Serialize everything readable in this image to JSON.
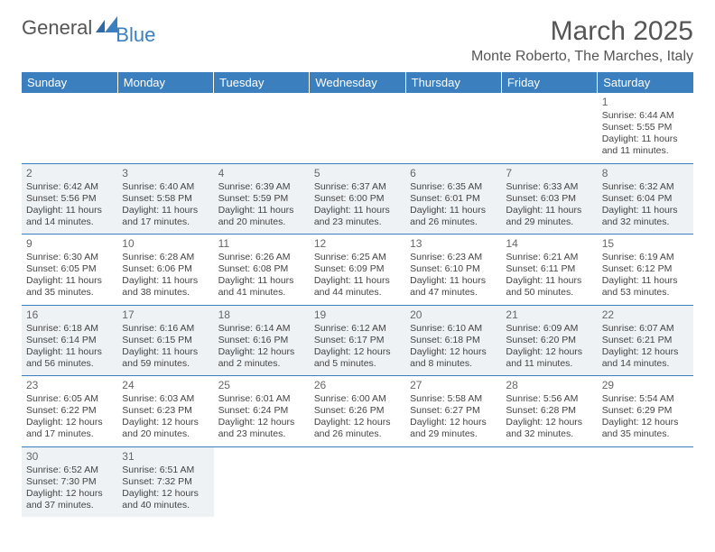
{
  "logo": {
    "general": "General",
    "blue": "Blue"
  },
  "title": "March 2025",
  "location": "Monte Roberto, The Marches, Italy",
  "colors": {
    "header_bg": "#3b7fbf",
    "header_fg": "#ffffff",
    "shaded_bg": "#eef2f5",
    "border": "#3b7fbf",
    "text": "#444444"
  },
  "weekdays": [
    "Sunday",
    "Monday",
    "Tuesday",
    "Wednesday",
    "Thursday",
    "Friday",
    "Saturday"
  ],
  "weeks": [
    [
      null,
      null,
      null,
      null,
      null,
      null,
      {
        "n": "1",
        "sr": "Sunrise: 6:44 AM",
        "ss": "Sunset: 5:55 PM",
        "dl1": "Daylight: 11 hours",
        "dl2": "and 11 minutes.",
        "sh": false
      }
    ],
    [
      {
        "n": "2",
        "sr": "Sunrise: 6:42 AM",
        "ss": "Sunset: 5:56 PM",
        "dl1": "Daylight: 11 hours",
        "dl2": "and 14 minutes.",
        "sh": true
      },
      {
        "n": "3",
        "sr": "Sunrise: 6:40 AM",
        "ss": "Sunset: 5:58 PM",
        "dl1": "Daylight: 11 hours",
        "dl2": "and 17 minutes.",
        "sh": true
      },
      {
        "n": "4",
        "sr": "Sunrise: 6:39 AM",
        "ss": "Sunset: 5:59 PM",
        "dl1": "Daylight: 11 hours",
        "dl2": "and 20 minutes.",
        "sh": true
      },
      {
        "n": "5",
        "sr": "Sunrise: 6:37 AM",
        "ss": "Sunset: 6:00 PM",
        "dl1": "Daylight: 11 hours",
        "dl2": "and 23 minutes.",
        "sh": true
      },
      {
        "n": "6",
        "sr": "Sunrise: 6:35 AM",
        "ss": "Sunset: 6:01 PM",
        "dl1": "Daylight: 11 hours",
        "dl2": "and 26 minutes.",
        "sh": true
      },
      {
        "n": "7",
        "sr": "Sunrise: 6:33 AM",
        "ss": "Sunset: 6:03 PM",
        "dl1": "Daylight: 11 hours",
        "dl2": "and 29 minutes.",
        "sh": true
      },
      {
        "n": "8",
        "sr": "Sunrise: 6:32 AM",
        "ss": "Sunset: 6:04 PM",
        "dl1": "Daylight: 11 hours",
        "dl2": "and 32 minutes.",
        "sh": true
      }
    ],
    [
      {
        "n": "9",
        "sr": "Sunrise: 6:30 AM",
        "ss": "Sunset: 6:05 PM",
        "dl1": "Daylight: 11 hours",
        "dl2": "and 35 minutes.",
        "sh": false
      },
      {
        "n": "10",
        "sr": "Sunrise: 6:28 AM",
        "ss": "Sunset: 6:06 PM",
        "dl1": "Daylight: 11 hours",
        "dl2": "and 38 minutes.",
        "sh": false
      },
      {
        "n": "11",
        "sr": "Sunrise: 6:26 AM",
        "ss": "Sunset: 6:08 PM",
        "dl1": "Daylight: 11 hours",
        "dl2": "and 41 minutes.",
        "sh": false
      },
      {
        "n": "12",
        "sr": "Sunrise: 6:25 AM",
        "ss": "Sunset: 6:09 PM",
        "dl1": "Daylight: 11 hours",
        "dl2": "and 44 minutes.",
        "sh": false
      },
      {
        "n": "13",
        "sr": "Sunrise: 6:23 AM",
        "ss": "Sunset: 6:10 PM",
        "dl1": "Daylight: 11 hours",
        "dl2": "and 47 minutes.",
        "sh": false
      },
      {
        "n": "14",
        "sr": "Sunrise: 6:21 AM",
        "ss": "Sunset: 6:11 PM",
        "dl1": "Daylight: 11 hours",
        "dl2": "and 50 minutes.",
        "sh": false
      },
      {
        "n": "15",
        "sr": "Sunrise: 6:19 AM",
        "ss": "Sunset: 6:12 PM",
        "dl1": "Daylight: 11 hours",
        "dl2": "and 53 minutes.",
        "sh": false
      }
    ],
    [
      {
        "n": "16",
        "sr": "Sunrise: 6:18 AM",
        "ss": "Sunset: 6:14 PM",
        "dl1": "Daylight: 11 hours",
        "dl2": "and 56 minutes.",
        "sh": true
      },
      {
        "n": "17",
        "sr": "Sunrise: 6:16 AM",
        "ss": "Sunset: 6:15 PM",
        "dl1": "Daylight: 11 hours",
        "dl2": "and 59 minutes.",
        "sh": true
      },
      {
        "n": "18",
        "sr": "Sunrise: 6:14 AM",
        "ss": "Sunset: 6:16 PM",
        "dl1": "Daylight: 12 hours",
        "dl2": "and 2 minutes.",
        "sh": true
      },
      {
        "n": "19",
        "sr": "Sunrise: 6:12 AM",
        "ss": "Sunset: 6:17 PM",
        "dl1": "Daylight: 12 hours",
        "dl2": "and 5 minutes.",
        "sh": true
      },
      {
        "n": "20",
        "sr": "Sunrise: 6:10 AM",
        "ss": "Sunset: 6:18 PM",
        "dl1": "Daylight: 12 hours",
        "dl2": "and 8 minutes.",
        "sh": true
      },
      {
        "n": "21",
        "sr": "Sunrise: 6:09 AM",
        "ss": "Sunset: 6:20 PM",
        "dl1": "Daylight: 12 hours",
        "dl2": "and 11 minutes.",
        "sh": true
      },
      {
        "n": "22",
        "sr": "Sunrise: 6:07 AM",
        "ss": "Sunset: 6:21 PM",
        "dl1": "Daylight: 12 hours",
        "dl2": "and 14 minutes.",
        "sh": true
      }
    ],
    [
      {
        "n": "23",
        "sr": "Sunrise: 6:05 AM",
        "ss": "Sunset: 6:22 PM",
        "dl1": "Daylight: 12 hours",
        "dl2": "and 17 minutes.",
        "sh": false
      },
      {
        "n": "24",
        "sr": "Sunrise: 6:03 AM",
        "ss": "Sunset: 6:23 PM",
        "dl1": "Daylight: 12 hours",
        "dl2": "and 20 minutes.",
        "sh": false
      },
      {
        "n": "25",
        "sr": "Sunrise: 6:01 AM",
        "ss": "Sunset: 6:24 PM",
        "dl1": "Daylight: 12 hours",
        "dl2": "and 23 minutes.",
        "sh": false
      },
      {
        "n": "26",
        "sr": "Sunrise: 6:00 AM",
        "ss": "Sunset: 6:26 PM",
        "dl1": "Daylight: 12 hours",
        "dl2": "and 26 minutes.",
        "sh": false
      },
      {
        "n": "27",
        "sr": "Sunrise: 5:58 AM",
        "ss": "Sunset: 6:27 PM",
        "dl1": "Daylight: 12 hours",
        "dl2": "and 29 minutes.",
        "sh": false
      },
      {
        "n": "28",
        "sr": "Sunrise: 5:56 AM",
        "ss": "Sunset: 6:28 PM",
        "dl1": "Daylight: 12 hours",
        "dl2": "and 32 minutes.",
        "sh": false
      },
      {
        "n": "29",
        "sr": "Sunrise: 5:54 AM",
        "ss": "Sunset: 6:29 PM",
        "dl1": "Daylight: 12 hours",
        "dl2": "and 35 minutes.",
        "sh": false
      }
    ],
    [
      {
        "n": "30",
        "sr": "Sunrise: 6:52 AM",
        "ss": "Sunset: 7:30 PM",
        "dl1": "Daylight: 12 hours",
        "dl2": "and 37 minutes.",
        "sh": true
      },
      {
        "n": "31",
        "sr": "Sunrise: 6:51 AM",
        "ss": "Sunset: 7:32 PM",
        "dl1": "Daylight: 12 hours",
        "dl2": "and 40 minutes.",
        "sh": true
      },
      null,
      null,
      null,
      null,
      null
    ]
  ]
}
